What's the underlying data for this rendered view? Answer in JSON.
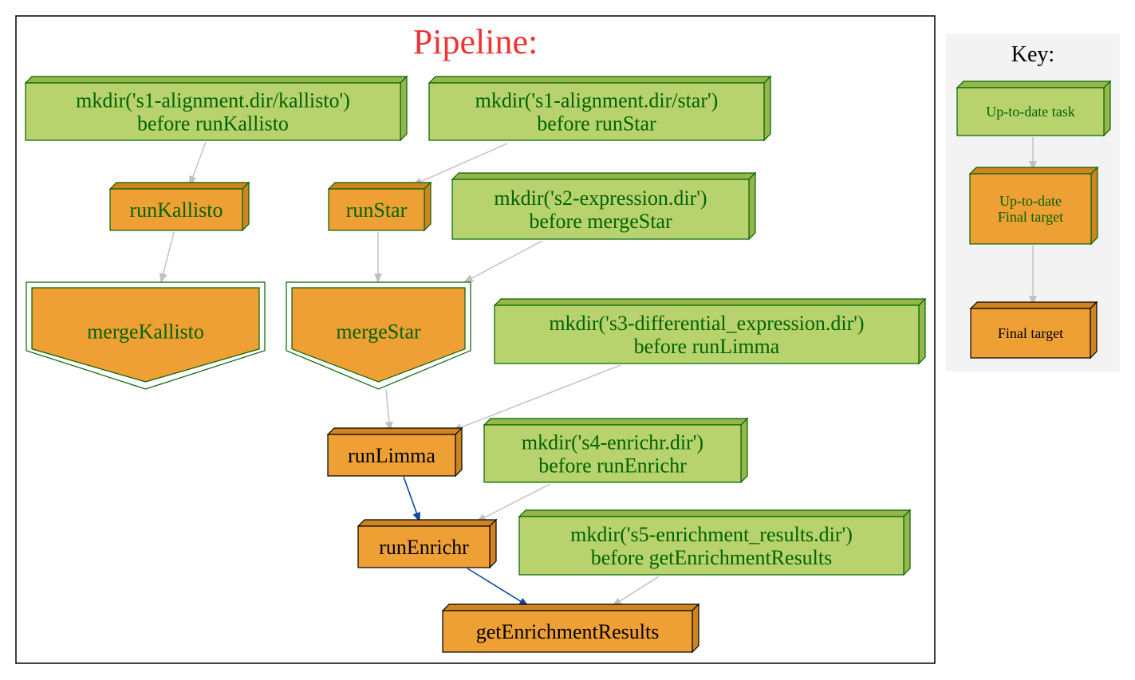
{
  "pipeline": {
    "title": "Pipeline:",
    "colors": {
      "title": "#ee3333",
      "green_fill": "#b8d26e",
      "green_side": "#96b64c",
      "green_stroke": "#006400",
      "orange_fill": "#eea035",
      "orange_side": "#cf8420",
      "edge_gray": "#c0c0c0",
      "edge_blue": "#0d47a1"
    },
    "nodes": [
      {
        "id": "mk-kallisto",
        "kind": "uptodate",
        "lines": [
          "mkdir('s1-alignment.dir/kallisto')",
          "before runKallisto"
        ]
      },
      {
        "id": "mk-star",
        "kind": "uptodate",
        "lines": [
          "mkdir('s1-alignment.dir/star')",
          "before runStar"
        ]
      },
      {
        "id": "run-kallisto",
        "kind": "uptodate-final",
        "lines": [
          "runKallisto"
        ]
      },
      {
        "id": "run-star",
        "kind": "uptodate-final",
        "lines": [
          "runStar"
        ]
      },
      {
        "id": "mk-expression",
        "kind": "uptodate",
        "lines": [
          "mkdir('s2-expression.dir')",
          "before mergeStar"
        ]
      },
      {
        "id": "merge-kallisto",
        "kind": "uptodate-final-merge",
        "lines": [
          "mergeKallisto"
        ]
      },
      {
        "id": "merge-star",
        "kind": "uptodate-final-merge",
        "lines": [
          "mergeStar"
        ]
      },
      {
        "id": "mk-diffexp",
        "kind": "uptodate",
        "lines": [
          "mkdir('s3-differential_expression.dir')",
          "before runLimma"
        ]
      },
      {
        "id": "run-limma",
        "kind": "final",
        "lines": [
          "runLimma"
        ]
      },
      {
        "id": "mk-enrichr",
        "kind": "uptodate",
        "lines": [
          "mkdir('s4-enrichr.dir')",
          "before runEnrichr"
        ]
      },
      {
        "id": "run-enrichr",
        "kind": "final",
        "lines": [
          "runEnrichr"
        ]
      },
      {
        "id": "mk-enrich-results",
        "kind": "uptodate",
        "lines": [
          "mkdir('s5-enrichment_results.dir')",
          "before getEnrichmentResults"
        ]
      },
      {
        "id": "get-enrichment-results",
        "kind": "final",
        "lines": [
          "getEnrichmentResults"
        ]
      }
    ],
    "edges": [
      {
        "from": "mk-kallisto",
        "to": "run-kallisto",
        "style": "uptodate"
      },
      {
        "from": "mk-star",
        "to": "run-star",
        "style": "uptodate"
      },
      {
        "from": "run-kallisto",
        "to": "merge-kallisto",
        "style": "uptodate"
      },
      {
        "from": "run-star",
        "to": "merge-star",
        "style": "uptodate"
      },
      {
        "from": "mk-expression",
        "to": "merge-star",
        "style": "uptodate"
      },
      {
        "from": "merge-star",
        "to": "run-limma",
        "style": "uptodate"
      },
      {
        "from": "mk-diffexp",
        "to": "run-limma",
        "style": "uptodate"
      },
      {
        "from": "run-limma",
        "to": "run-enrichr",
        "style": "final"
      },
      {
        "from": "mk-enrichr",
        "to": "run-enrichr",
        "style": "uptodate"
      },
      {
        "from": "run-enrichr",
        "to": "get-enrichment-results",
        "style": "final"
      },
      {
        "from": "mk-enrich-results",
        "to": "get-enrichment-results",
        "style": "uptodate"
      }
    ]
  },
  "key": {
    "title": "Key:",
    "items": [
      {
        "id": "key-uptodate-task",
        "kind": "uptodate",
        "lines": [
          "Up-to-date task"
        ]
      },
      {
        "id": "key-uptodate-final",
        "kind": "uptodate-final",
        "lines": [
          "Up-to-date",
          "Final target"
        ]
      },
      {
        "id": "key-final",
        "kind": "final",
        "lines": [
          "Final target"
        ]
      }
    ],
    "edges": [
      {
        "from": "key-uptodate-task",
        "to": "key-uptodate-final"
      },
      {
        "from": "key-uptodate-final",
        "to": "key-final"
      }
    ]
  }
}
